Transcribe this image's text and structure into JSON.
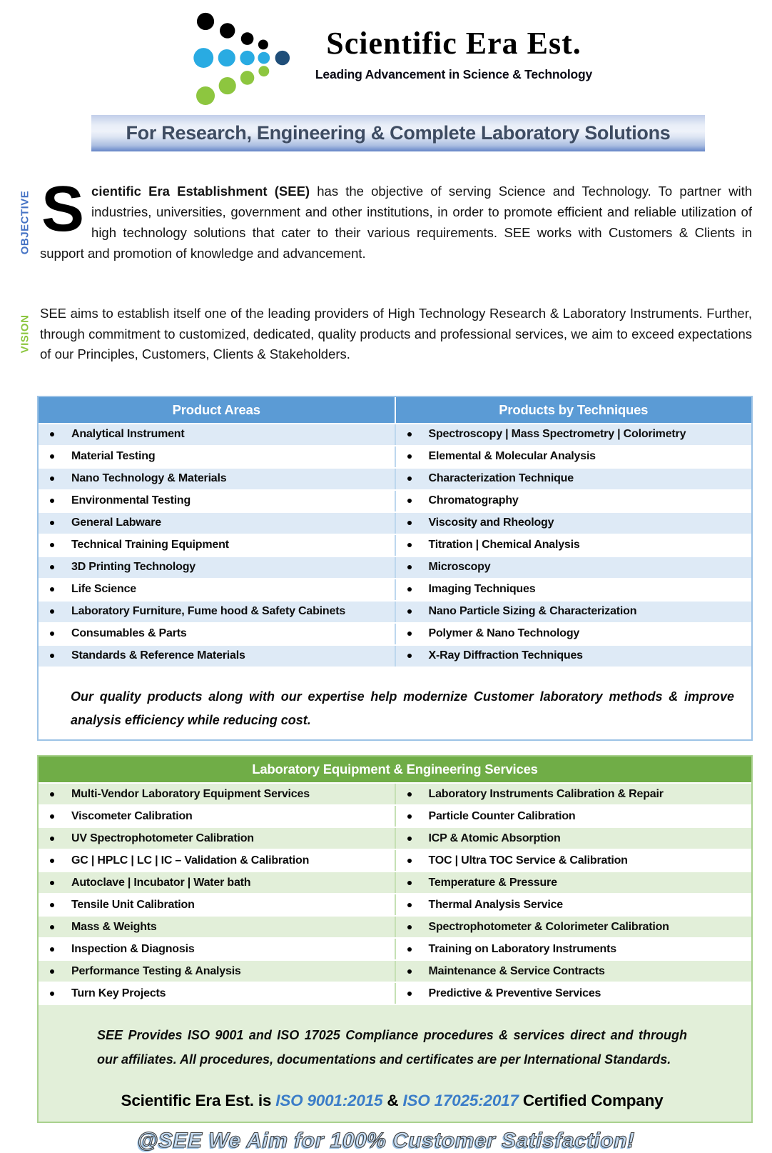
{
  "logo": {
    "title": "Scientific Era Est.",
    "tagline": "Leading Advancement in Science & Technology"
  },
  "banner": {
    "text": "For Research, Engineering & Complete Laboratory Solutions"
  },
  "objective": {
    "label": "OBJECTIVE",
    "drop_cap": "S",
    "lead_bold": "cientific Era Establishment (SEE)",
    "text": " has the objective of serving Science and Technology. To partner with industries, universities, government and other institutions, in order to promote efficient and reliable utilization of high technology solutions that cater to their various requirements. SEE works with Customers & Clients in support and promotion of knowledge and advancement."
  },
  "vision": {
    "label": "VISION",
    "text": "SEE aims to establish itself one of the leading providers of High Technology Research & Laboratory Instruments. Further, through commitment to customized, dedicated, quality products and professional services, we aim to exceed expectations of our Principles, Customers, Clients & Stakeholders."
  },
  "product_table": {
    "headers": [
      "Product Areas",
      "Products by Techniques"
    ],
    "rows": [
      [
        "Analytical Instrument",
        "Spectroscopy | Mass Spectrometry | Colorimetry"
      ],
      [
        "Material Testing",
        "Elemental & Molecular Analysis"
      ],
      [
        "Nano Technology & Materials",
        "Characterization Technique"
      ],
      [
        "Environmental Testing",
        "Chromatography"
      ],
      [
        "General Labware",
        "Viscosity and Rheology"
      ],
      [
        "Technical Training Equipment",
        "Titration | Chemical Analysis"
      ],
      [
        "3D Printing Technology",
        "Microscopy"
      ],
      [
        "Life Science",
        "Imaging Techniques"
      ],
      [
        "Laboratory Furniture, Fume hood & Safety Cabinets",
        "Nano Particle Sizing & Characterization"
      ],
      [
        "Consumables & Parts",
        "Polymer & Nano Technology"
      ],
      [
        "Standards & Reference Materials",
        "X-Ray Diffraction Techniques"
      ]
    ],
    "note": "Our quality products along with our expertise help modernize Customer laboratory methods & improve analysis efficiency while reducing cost."
  },
  "services_table": {
    "header": "Laboratory Equipment & Engineering Services",
    "rows": [
      [
        "Multi-Vendor Laboratory Equipment Services",
        "Laboratory Instruments Calibration & Repair"
      ],
      [
        "Viscometer Calibration",
        "Particle Counter Calibration"
      ],
      [
        "UV Spectrophotometer Calibration",
        "ICP & Atomic Absorption"
      ],
      [
        "GC | HPLC | LC | IC – Validation & Calibration",
        "TOC | Ultra TOC Service & Calibration"
      ],
      [
        "Autoclave | Incubator | Water bath",
        "Temperature & Pressure"
      ],
      [
        "Tensile Unit Calibration",
        "Thermal Analysis Service"
      ],
      [
        "Mass & Weights",
        "Spectrophotometer & Colorimeter Calibration"
      ],
      [
        "Inspection & Diagnosis",
        "Training on Laboratory Instruments"
      ],
      [
        "Performance Testing & Analysis",
        "Maintenance & Service Contracts"
      ],
      [
        "Turn Key Projects",
        "Predictive & Preventive Services"
      ]
    ],
    "note": "SEE Provides ISO 9001 and ISO 17025 Compliance procedures & services direct and through our affiliates. All procedures, documentations and certificates are per International Standards.",
    "certified": {
      "prefix": "Scientific Era Est. is ",
      "iso1": "ISO 9001:2015",
      "amp": " & ",
      "iso2": "ISO 17025:2017",
      "suffix": " Certified Company"
    }
  },
  "footer": {
    "slogan": "@SEE We Aim for 100% Customer Satisfaction!"
  },
  "colors": {
    "logo_blue": "#29abe2",
    "logo_navy": "#1f4e79",
    "logo_green": "#8dc63f",
    "objective_label": "#4472c4",
    "vision_label": "#8cc63f",
    "table_header_blue": "#5b9bd5",
    "table_row_blue": "#deeaf6",
    "table_header_green": "#70ad47",
    "table_row_green": "#e2efd9",
    "iso_text_blue": "#3b7dc8"
  }
}
